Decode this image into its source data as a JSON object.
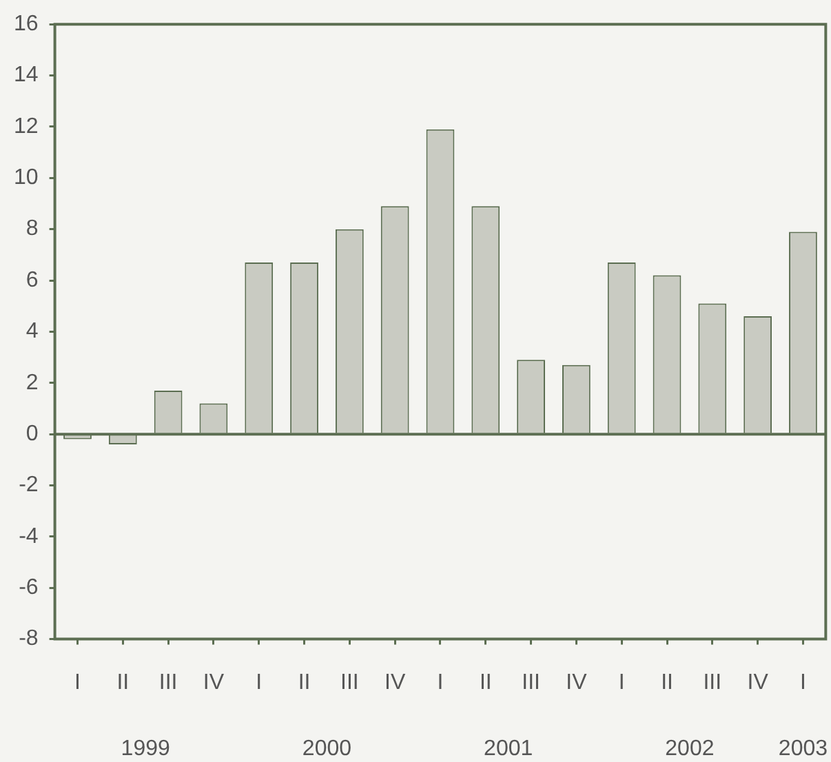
{
  "chart_data": {
    "type": "bar",
    "categories": [
      "I",
      "II",
      "III",
      "IV",
      "I",
      "II",
      "III",
      "IV",
      "I",
      "II",
      "III",
      "IV",
      "I",
      "II",
      "III",
      "IV",
      "I"
    ],
    "values": [
      -0.2,
      -0.4,
      1.7,
      1.2,
      6.7,
      6.7,
      8.0,
      8.9,
      11.9,
      8.9,
      2.9,
      2.7,
      6.7,
      6.2,
      5.1,
      4.6,
      7.9
    ],
    "color": "#c9cbc2",
    "ylim": [
      -8,
      16
    ],
    "yticks": [
      -8,
      -6,
      -4,
      -2,
      0,
      2,
      4,
      6,
      8,
      10,
      12,
      14,
      16
    ],
    "grid": false,
    "legend": false,
    "ref_lines": [
      {
        "axis": "y",
        "value": 0,
        "color": "#5c6e52"
      }
    ],
    "annotations": [
      "1999",
      "2000",
      "2001",
      "2002",
      "2003"
    ]
  }
}
